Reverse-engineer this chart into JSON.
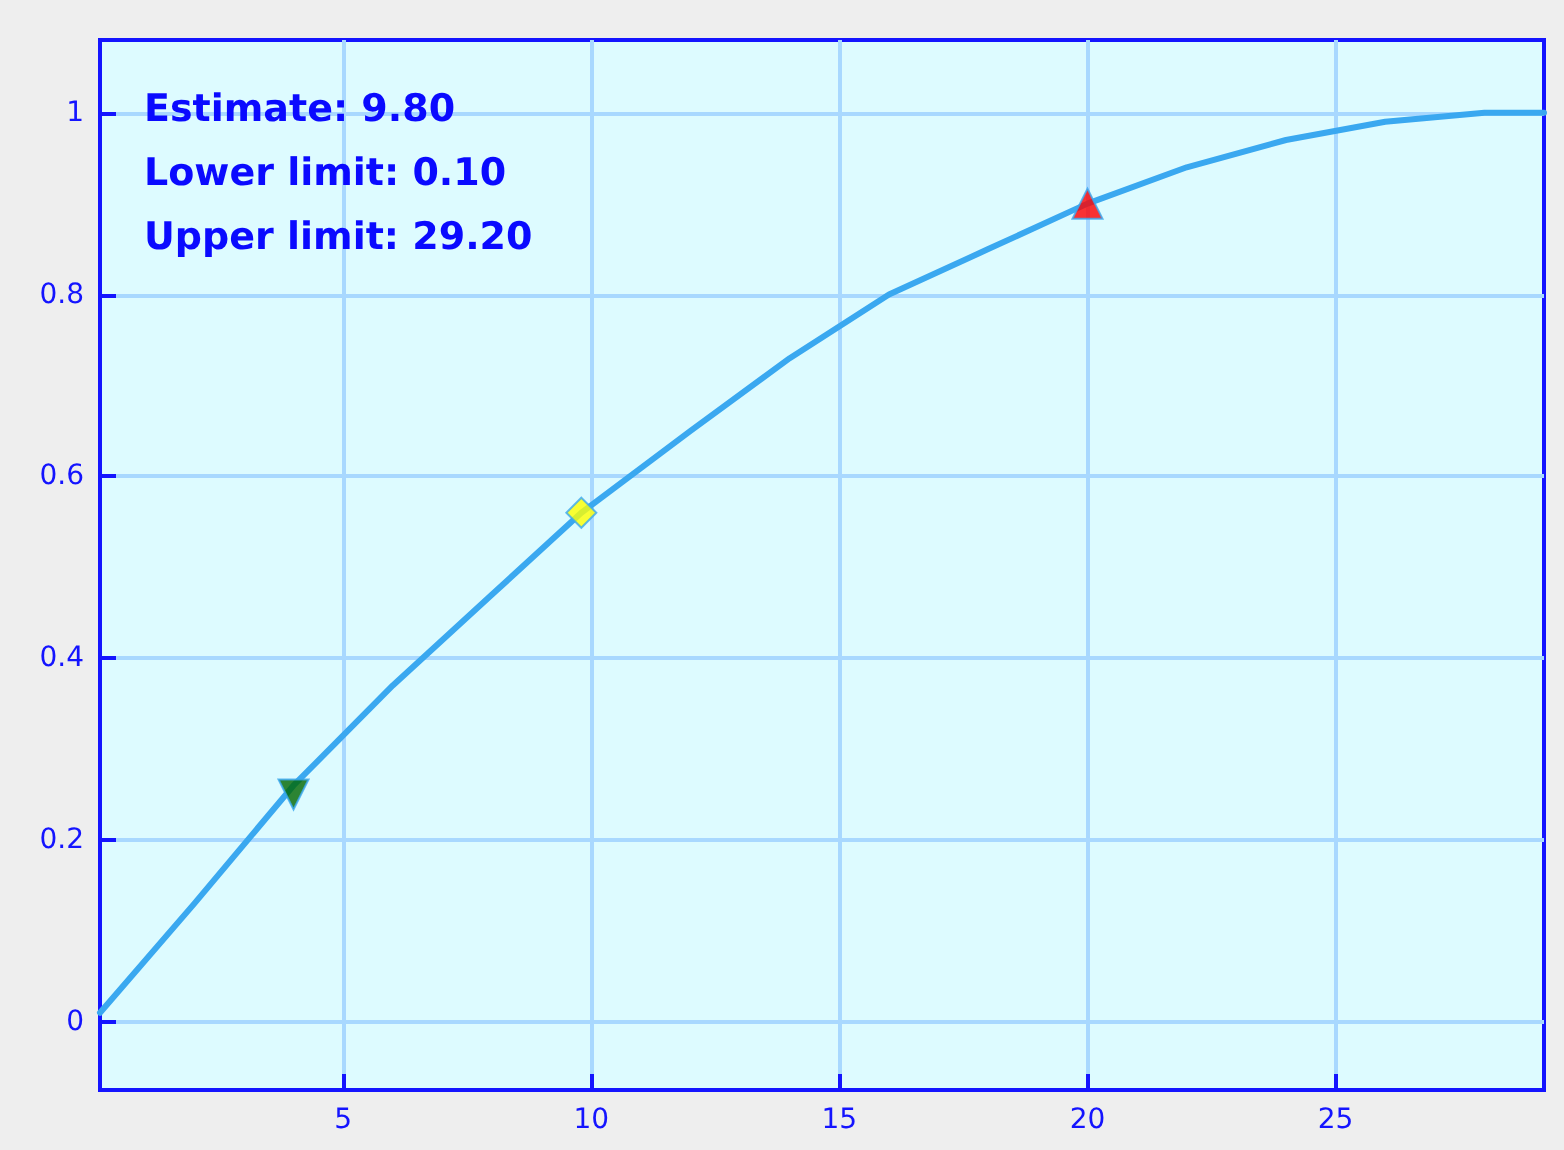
{
  "chart_data": {
    "type": "line",
    "x": [
      0.1,
      2,
      4,
      6,
      8,
      9.8,
      12,
      14,
      16,
      18,
      20,
      22,
      24,
      26,
      28,
      29.2
    ],
    "series": [
      {
        "color": "#3aa8f0",
        "values": [
          0.01,
          0.13,
          0.26,
          0.37,
          0.47,
          0.56,
          0.65,
          0.73,
          0.8,
          0.85,
          0.9,
          0.94,
          0.97,
          0.99,
          1,
          1
        ],
        "marker": "none"
      },
      {
        "type": "scatter",
        "x": [
          4
        ],
        "values": [
          0.25
        ],
        "color": "#006600",
        "marker": "triangle-down"
      },
      {
        "type": "scatter",
        "x": [
          9.8
        ],
        "values": [
          0.56
        ],
        "color": "#ffff00",
        "marker": "diamond"
      },
      {
        "type": "scatter",
        "x": [
          20
        ],
        "values": [
          0.9
        ],
        "color": "#ff0000",
        "marker": "triangle"
      }
    ],
    "annotations": [
      "Estimate: 9.80",
      "Lower limit: 0.10",
      "Upper limit: 29.20"
    ],
    "xlim": [
      0.1,
      29.2
    ],
    "xticks": [
      5,
      10,
      15,
      20,
      25
    ],
    "ylim": [
      -0.075,
      1.08
    ],
    "yticks": [
      0,
      0.2,
      0.4,
      0.6,
      0.8,
      1
    ],
    "grid": true
  }
}
